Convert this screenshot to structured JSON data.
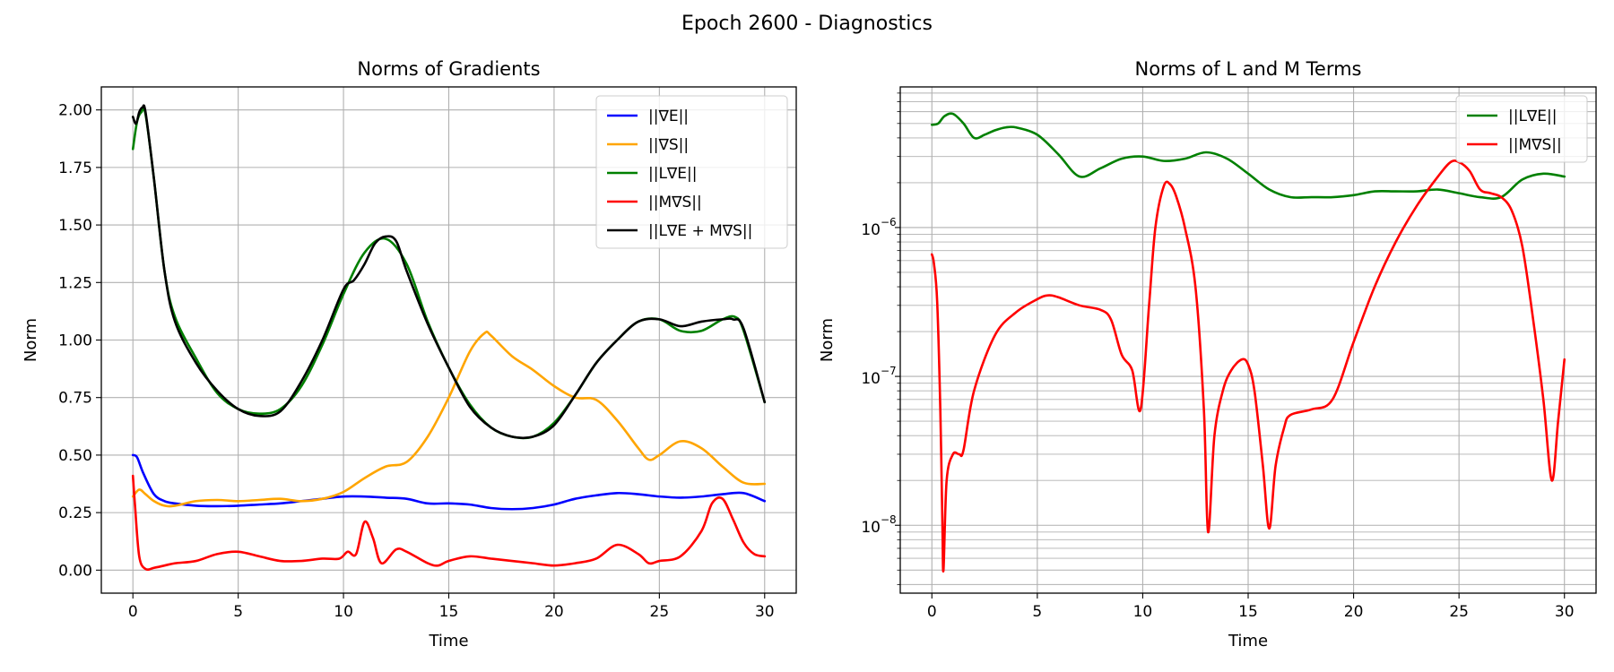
{
  "suptitle": "Epoch 2600 - Diagnostics",
  "chart_data": [
    {
      "type": "line",
      "title": "Norms of Gradients",
      "xlabel": "Time",
      "ylabel": "Norm",
      "xlim": [
        -1.5,
        31.5
      ],
      "ylim": [
        -0.1,
        2.1
      ],
      "yscale": "linear",
      "xticks": [
        0,
        5,
        10,
        15,
        20,
        25,
        30
      ],
      "yticks": [
        0,
        0.25,
        0.5,
        0.75,
        1.0,
        1.25,
        1.5,
        1.75,
        2.0
      ],
      "ytick_labels": [
        "0.00",
        "0.25",
        "0.50",
        "0.75",
        "1.00",
        "1.25",
        "1.50",
        "1.75",
        "2.00"
      ],
      "grid": true,
      "legend_position": "top-right",
      "series": [
        {
          "name": "||∇E||",
          "color": "#0000ff",
          "x": [
            0,
            0.2,
            0.5,
            1,
            1.5,
            2,
            3,
            4,
            5,
            6,
            7,
            8,
            9,
            10,
            11,
            12,
            13,
            14,
            15,
            16,
            17,
            18,
            19,
            20,
            21,
            22,
            23,
            24,
            25,
            26,
            27,
            28,
            29,
            30
          ],
          "y": [
            0.5,
            0.49,
            0.42,
            0.33,
            0.3,
            0.29,
            0.28,
            0.278,
            0.28,
            0.285,
            0.29,
            0.3,
            0.31,
            0.32,
            0.32,
            0.315,
            0.31,
            0.29,
            0.29,
            0.285,
            0.27,
            0.265,
            0.27,
            0.285,
            0.31,
            0.325,
            0.335,
            0.33,
            0.32,
            0.315,
            0.32,
            0.33,
            0.335,
            0.3
          ]
        },
        {
          "name": "||∇S||",
          "color": "#ffa500",
          "x": [
            0,
            0.3,
            0.6,
            1,
            1.5,
            2,
            3,
            4,
            5,
            6,
            7,
            8,
            9,
            10,
            11,
            12,
            13,
            14,
            15,
            16,
            16.7,
            17,
            18,
            19,
            20,
            21,
            22,
            23,
            24,
            24.5,
            25,
            26,
            27,
            28,
            29,
            30
          ],
          "y": [
            0.32,
            0.35,
            0.33,
            0.3,
            0.28,
            0.28,
            0.3,
            0.305,
            0.3,
            0.305,
            0.31,
            0.3,
            0.31,
            0.34,
            0.4,
            0.45,
            0.47,
            0.58,
            0.75,
            0.95,
            1.03,
            1.02,
            0.93,
            0.87,
            0.8,
            0.75,
            0.74,
            0.65,
            0.53,
            0.48,
            0.5,
            0.56,
            0.53,
            0.45,
            0.38,
            0.375
          ]
        },
        {
          "name": "||L∇E||",
          "color": "#008000",
          "x": [
            0,
            0.2,
            0.4,
            0.6,
            1,
            1.5,
            2,
            3,
            4,
            5,
            6,
            7,
            8,
            9,
            10,
            11,
            12,
            13,
            14,
            15,
            16,
            17,
            18,
            19,
            20,
            21,
            22,
            23,
            24,
            25,
            26,
            27,
            28,
            28.6,
            29,
            30
          ],
          "y": [
            1.83,
            1.95,
            1.99,
            1.98,
            1.7,
            1.3,
            1.1,
            0.92,
            0.77,
            0.7,
            0.68,
            0.7,
            0.8,
            0.98,
            1.2,
            1.38,
            1.44,
            1.33,
            1.08,
            0.88,
            0.72,
            0.62,
            0.58,
            0.58,
            0.64,
            0.76,
            0.9,
            1.0,
            1.08,
            1.09,
            1.04,
            1.04,
            1.09,
            1.1,
            1.04,
            0.73
          ]
        },
        {
          "name": "||M∇S||",
          "color": "#ff0000",
          "x": [
            0,
            0.1,
            0.3,
            0.6,
            1,
            1.5,
            2,
            3,
            4,
            5,
            6,
            7,
            8,
            9,
            9.8,
            10.2,
            10.6,
            11,
            11.4,
            11.8,
            12.5,
            13,
            14,
            14.5,
            15,
            16,
            17,
            18,
            19,
            20,
            21,
            22,
            23,
            24,
            24.5,
            25,
            26,
            27,
            27.5,
            28,
            28.5,
            29,
            29.5,
            30
          ],
          "y": [
            0.41,
            0.28,
            0.06,
            0.005,
            0.01,
            0.02,
            0.03,
            0.04,
            0.07,
            0.08,
            0.06,
            0.04,
            0.04,
            0.05,
            0.05,
            0.08,
            0.07,
            0.21,
            0.14,
            0.03,
            0.09,
            0.08,
            0.03,
            0.02,
            0.04,
            0.06,
            0.05,
            0.04,
            0.03,
            0.02,
            0.03,
            0.05,
            0.11,
            0.07,
            0.03,
            0.04,
            0.06,
            0.17,
            0.29,
            0.31,
            0.22,
            0.12,
            0.07,
            0.06
          ]
        },
        {
          "name": "||L∇E + M∇S||",
          "color": "#000000",
          "x": [
            0,
            0.15,
            0.3,
            0.45,
            0.6,
            1,
            1.5,
            2,
            3,
            4,
            5,
            6,
            7,
            8,
            9,
            10,
            10.5,
            11,
            11.5,
            12,
            12.5,
            13,
            14,
            15,
            16,
            17,
            18,
            19,
            20,
            21,
            22,
            23,
            24,
            25,
            26,
            27,
            28,
            28.5,
            29,
            30
          ],
          "y": [
            1.97,
            1.94,
            1.99,
            2.01,
            1.99,
            1.7,
            1.3,
            1.08,
            0.9,
            0.78,
            0.7,
            0.67,
            0.69,
            0.82,
            1.0,
            1.22,
            1.26,
            1.33,
            1.42,
            1.45,
            1.43,
            1.3,
            1.07,
            0.88,
            0.71,
            0.62,
            0.58,
            0.58,
            0.63,
            0.76,
            0.9,
            1.0,
            1.08,
            1.09,
            1.06,
            1.08,
            1.09,
            1.09,
            1.05,
            0.73
          ]
        }
      ]
    },
    {
      "type": "line",
      "title": "Norms of L and M Terms",
      "xlabel": "Time",
      "ylabel": "Norm",
      "xlim": [
        -1.5,
        31.5
      ],
      "ylim": [
        3.5e-09,
        8.8e-06
      ],
      "yscale": "log",
      "xticks": [
        0,
        5,
        10,
        15,
        20,
        25,
        30
      ],
      "major_yticks": [
        1e-08,
        1e-07,
        1e-06
      ],
      "ytick_labels": [
        "10",
        "10",
        "10"
      ],
      "ytick_exponents": [
        "−8",
        "−7",
        "−6"
      ],
      "grid": true,
      "legend_position": "top-right",
      "series": [
        {
          "name": "||L∇E||",
          "color": "#008000",
          "x": [
            0,
            0.3,
            0.6,
            1,
            1.5,
            2,
            2.5,
            3,
            3.5,
            4,
            5,
            6,
            7,
            8,
            9,
            10,
            11,
            12,
            13,
            14,
            15,
            16,
            17,
            18,
            19,
            20,
            21,
            22,
            23,
            24,
            25,
            26,
            27,
            28,
            29,
            30
          ],
          "y": [
            4.9e-06,
            5e-06,
            5.6e-06,
            5.8e-06,
            5e-06,
            4e-06,
            4.2e-06,
            4.5e-06,
            4.7e-06,
            4.7e-06,
            4.2e-06,
            3.1e-06,
            2.2e-06,
            2.5e-06,
            2.9e-06,
            3e-06,
            2.8e-06,
            2.9e-06,
            3.2e-06,
            2.9e-06,
            2.3e-06,
            1.8e-06,
            1.6e-06,
            1.6e-06,
            1.6e-06,
            1.65e-06,
            1.75e-06,
            1.75e-06,
            1.75e-06,
            1.8e-06,
            1.7e-06,
            1.6e-06,
            1.6e-06,
            2.1e-06,
            2.3e-06,
            2.2e-06
          ]
        },
        {
          "name": "||M∇S||",
          "color": "#ff0000",
          "x": [
            0,
            0.1,
            0.25,
            0.4,
            0.5,
            0.55,
            0.7,
            1,
            1.3,
            1.5,
            2,
            3,
            4,
            5,
            5.5,
            6,
            7,
            8,
            8.5,
            9,
            9.5,
            9.9,
            10.3,
            10.6,
            11,
            11.3,
            11.6,
            12,
            12.5,
            12.9,
            13.1,
            13.4,
            13.8,
            14.2,
            14.7,
            15,
            15.3,
            15.7,
            16,
            16.3,
            16.7,
            17,
            18,
            19,
            20,
            21,
            22,
            23,
            24,
            24.6,
            25,
            25.5,
            26,
            26.5,
            27,
            27.5,
            28,
            28.5,
            29,
            29.4,
            29.7,
            30
          ],
          "y": [
            6.6e-07,
            5.7e-07,
            3.2e-07,
            6e-08,
            1e-08,
            5e-09,
            2e-08,
            3e-08,
            3e-08,
            3.2e-08,
            8e-08,
            1.9e-07,
            2.7e-07,
            3.3e-07,
            3.5e-07,
            3.4e-07,
            3e-07,
            2.8e-07,
            2.4e-07,
            1.4e-07,
            1.1e-07,
            6e-08,
            3e-07,
            1e-06,
            1.9e-06,
            1.95e-06,
            1.6e-06,
            1e-06,
            4e-07,
            6e-08,
            9e-09,
            4e-08,
            8e-08,
            1.1e-07,
            1.3e-07,
            1.2e-07,
            8e-08,
            2.5e-08,
            9.5e-09,
            2.5e-08,
            4.5e-08,
            5.5e-08,
            6e-08,
            7e-08,
            1.7e-07,
            4e-07,
            8e-07,
            1.4e-06,
            2.2e-06,
            2.75e-06,
            2.75e-06,
            2.4e-06,
            1.8e-06,
            1.7e-06,
            1.6e-06,
            1.3e-06,
            7.5e-07,
            2.5e-07,
            7e-08,
            2e-08,
            5e-08,
            1.3e-07
          ]
        }
      ]
    }
  ]
}
